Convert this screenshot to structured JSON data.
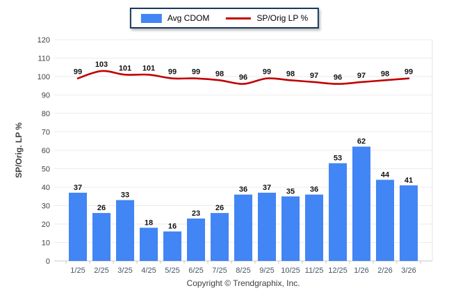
{
  "footer": {
    "text": "Copyright © Trendgraphix, Inc."
  },
  "colors": {
    "bar": "#4285F4",
    "line": "#C00000",
    "grid": "#ebebeb",
    "axis_line": "#c9c9c9",
    "right_border": "#e3e3e3",
    "legend_border": "#17375e"
  },
  "chart_data": {
    "type": "combo",
    "categories": [
      "1/25",
      "2/25",
      "3/25",
      "4/25",
      "5/25",
      "6/25",
      "7/25",
      "8/25",
      "9/25",
      "10/25",
      "11/25",
      "12/25",
      "1/26",
      "2/26",
      "3/26"
    ],
    "series": [
      {
        "name": "Avg CDOM",
        "type": "bar",
        "color": "#4285F4",
        "values": [
          37,
          26,
          33,
          18,
          16,
          23,
          26,
          36,
          37,
          35,
          36,
          53,
          62,
          44,
          41
        ]
      },
      {
        "name": "SP/Orig LP %",
        "type": "line",
        "color": "#C00000",
        "values": [
          99,
          103,
          101,
          101,
          99,
          99,
          98,
          96,
          99,
          98,
          97,
          96,
          97,
          98,
          99
        ]
      }
    ],
    "title": "",
    "xlabel": "",
    "ylabel": "SP/Orig. LP %",
    "ylim": [
      0,
      120
    ],
    "ytick_step": 10,
    "grid": true,
    "legend_position": "top-center",
    "data_labels": true
  }
}
